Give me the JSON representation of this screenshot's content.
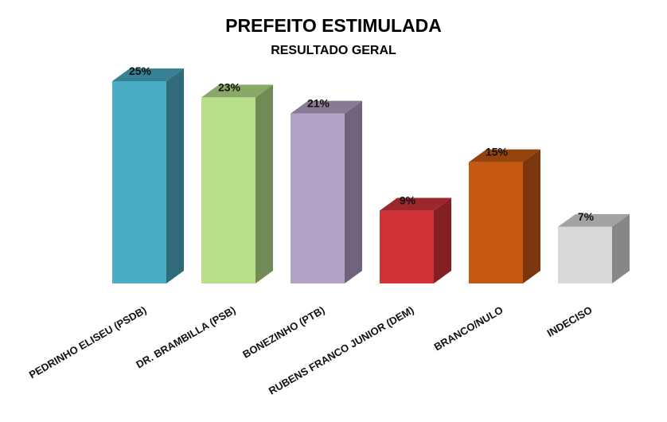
{
  "chart_data": {
    "type": "bar",
    "title": "PREFEITO ESTIMULADA",
    "subtitle": "RESULTADO GERAL",
    "categories": [
      "PEDRINHO ELISEU (PSDB)",
      "DR. BRAMBILLA (PSB)",
      "BONEZINHO (PTB)",
      "RUBENS FRANCO JUNIOR (DEM)",
      "BRANCO/NULO",
      "INDECISO"
    ],
    "values": [
      25,
      23,
      21,
      9,
      15,
      7
    ],
    "value_labels": [
      "25%",
      "23%",
      "21%",
      "9%",
      "15%",
      "7%"
    ],
    "unit": "%",
    "colors": [
      "#4BACC6",
      "#B8E08A",
      "#B3A2C7",
      "#D13438",
      "#C65911",
      "#D9D9D9"
    ],
    "ylim": [
      0,
      25
    ],
    "grid": false,
    "legend": "none",
    "style": "3d-columns"
  }
}
